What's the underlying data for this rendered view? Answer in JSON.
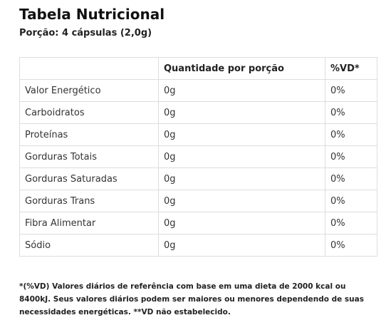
{
  "header": {
    "title": "Tabela Nutricional",
    "subtitle": "Porção: 4 cápsulas (2,0g)"
  },
  "table": {
    "columns": [
      "",
      "Quantidade por porção",
      "%VD*"
    ],
    "rows": [
      [
        "Valor Energético",
        "0g",
        "0%"
      ],
      [
        "Carboidratos",
        "0g",
        "0%"
      ],
      [
        "Proteínas",
        "0g",
        "0%"
      ],
      [
        "Gorduras Totais",
        "0g",
        "0%"
      ],
      [
        "Gorduras Saturadas",
        "0g",
        "0%"
      ],
      [
        "Gorduras Trans",
        "0g",
        "0%"
      ],
      [
        "Fibra Alimentar",
        "0g",
        "0%"
      ],
      [
        "Sódio",
        "0g",
        "0%"
      ]
    ]
  },
  "footnote": "*(%VD) Valores diários de referência com base em uma dieta de 2000 kcal ou 8400kJ. Seus valores diários podem ser maiores ou menores dependendo de suas necessidades energéticas. **VD não estabelecido."
}
